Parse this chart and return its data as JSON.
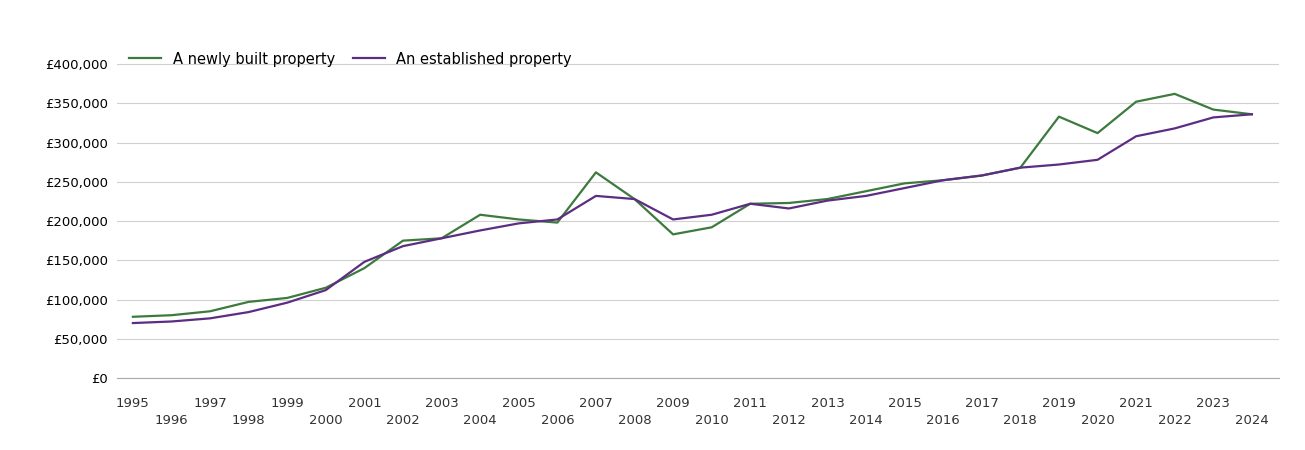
{
  "new_property": {
    "label": "A newly built property",
    "color": "#3d7a3d",
    "years": [
      1995,
      1996,
      1997,
      1998,
      1999,
      2000,
      2001,
      2002,
      2003,
      2004,
      2005,
      2006,
      2007,
      2008,
      2009,
      2010,
      2011,
      2012,
      2013,
      2014,
      2015,
      2016,
      2017,
      2018,
      2019,
      2020,
      2021,
      2022,
      2023,
      2024
    ],
    "values": [
      78000,
      80000,
      85000,
      97000,
      102000,
      115000,
      140000,
      175000,
      178000,
      208000,
      202000,
      198000,
      262000,
      228000,
      183000,
      192000,
      222000,
      223000,
      228000,
      238000,
      248000,
      252000,
      258000,
      268000,
      333000,
      312000,
      352000,
      362000,
      342000,
      336000
    ]
  },
  "established_property": {
    "label": "An established property",
    "color": "#5c2d82",
    "years": [
      1995,
      1996,
      1997,
      1998,
      1999,
      2000,
      2001,
      2002,
      2003,
      2004,
      2005,
      2006,
      2007,
      2008,
      2009,
      2010,
      2011,
      2012,
      2013,
      2014,
      2015,
      2016,
      2017,
      2018,
      2019,
      2020,
      2021,
      2022,
      2023,
      2024
    ],
    "values": [
      70000,
      72000,
      76000,
      84000,
      96000,
      112000,
      148000,
      168000,
      178000,
      188000,
      197000,
      202000,
      232000,
      228000,
      202000,
      208000,
      222000,
      216000,
      226000,
      232000,
      242000,
      252000,
      258000,
      268000,
      272000,
      278000,
      308000,
      318000,
      332000,
      336000
    ]
  },
  "ylim": [
    0,
    430000
  ],
  "yticks": [
    0,
    50000,
    100000,
    150000,
    200000,
    250000,
    300000,
    350000,
    400000
  ],
  "ytick_labels": [
    "£0",
    "£50,000",
    "£100,000",
    "£150,000",
    "£200,000",
    "£250,000",
    "£300,000",
    "£350,000",
    "£400,000"
  ],
  "xlim_min": 1994.6,
  "xlim_max": 2024.7,
  "grid_color": "#d0d0d0",
  "background_color": "#ffffff",
  "line_width": 1.6,
  "legend_fontsize": 10.5,
  "tick_fontsize": 9.5,
  "odd_years": [
    1995,
    1997,
    1999,
    2001,
    2003,
    2005,
    2007,
    2009,
    2011,
    2013,
    2015,
    2017,
    2019,
    2021,
    2023
  ],
  "even_years": [
    1996,
    1998,
    2000,
    2002,
    2004,
    2006,
    2008,
    2010,
    2012,
    2014,
    2016,
    2018,
    2020,
    2022,
    2024
  ]
}
